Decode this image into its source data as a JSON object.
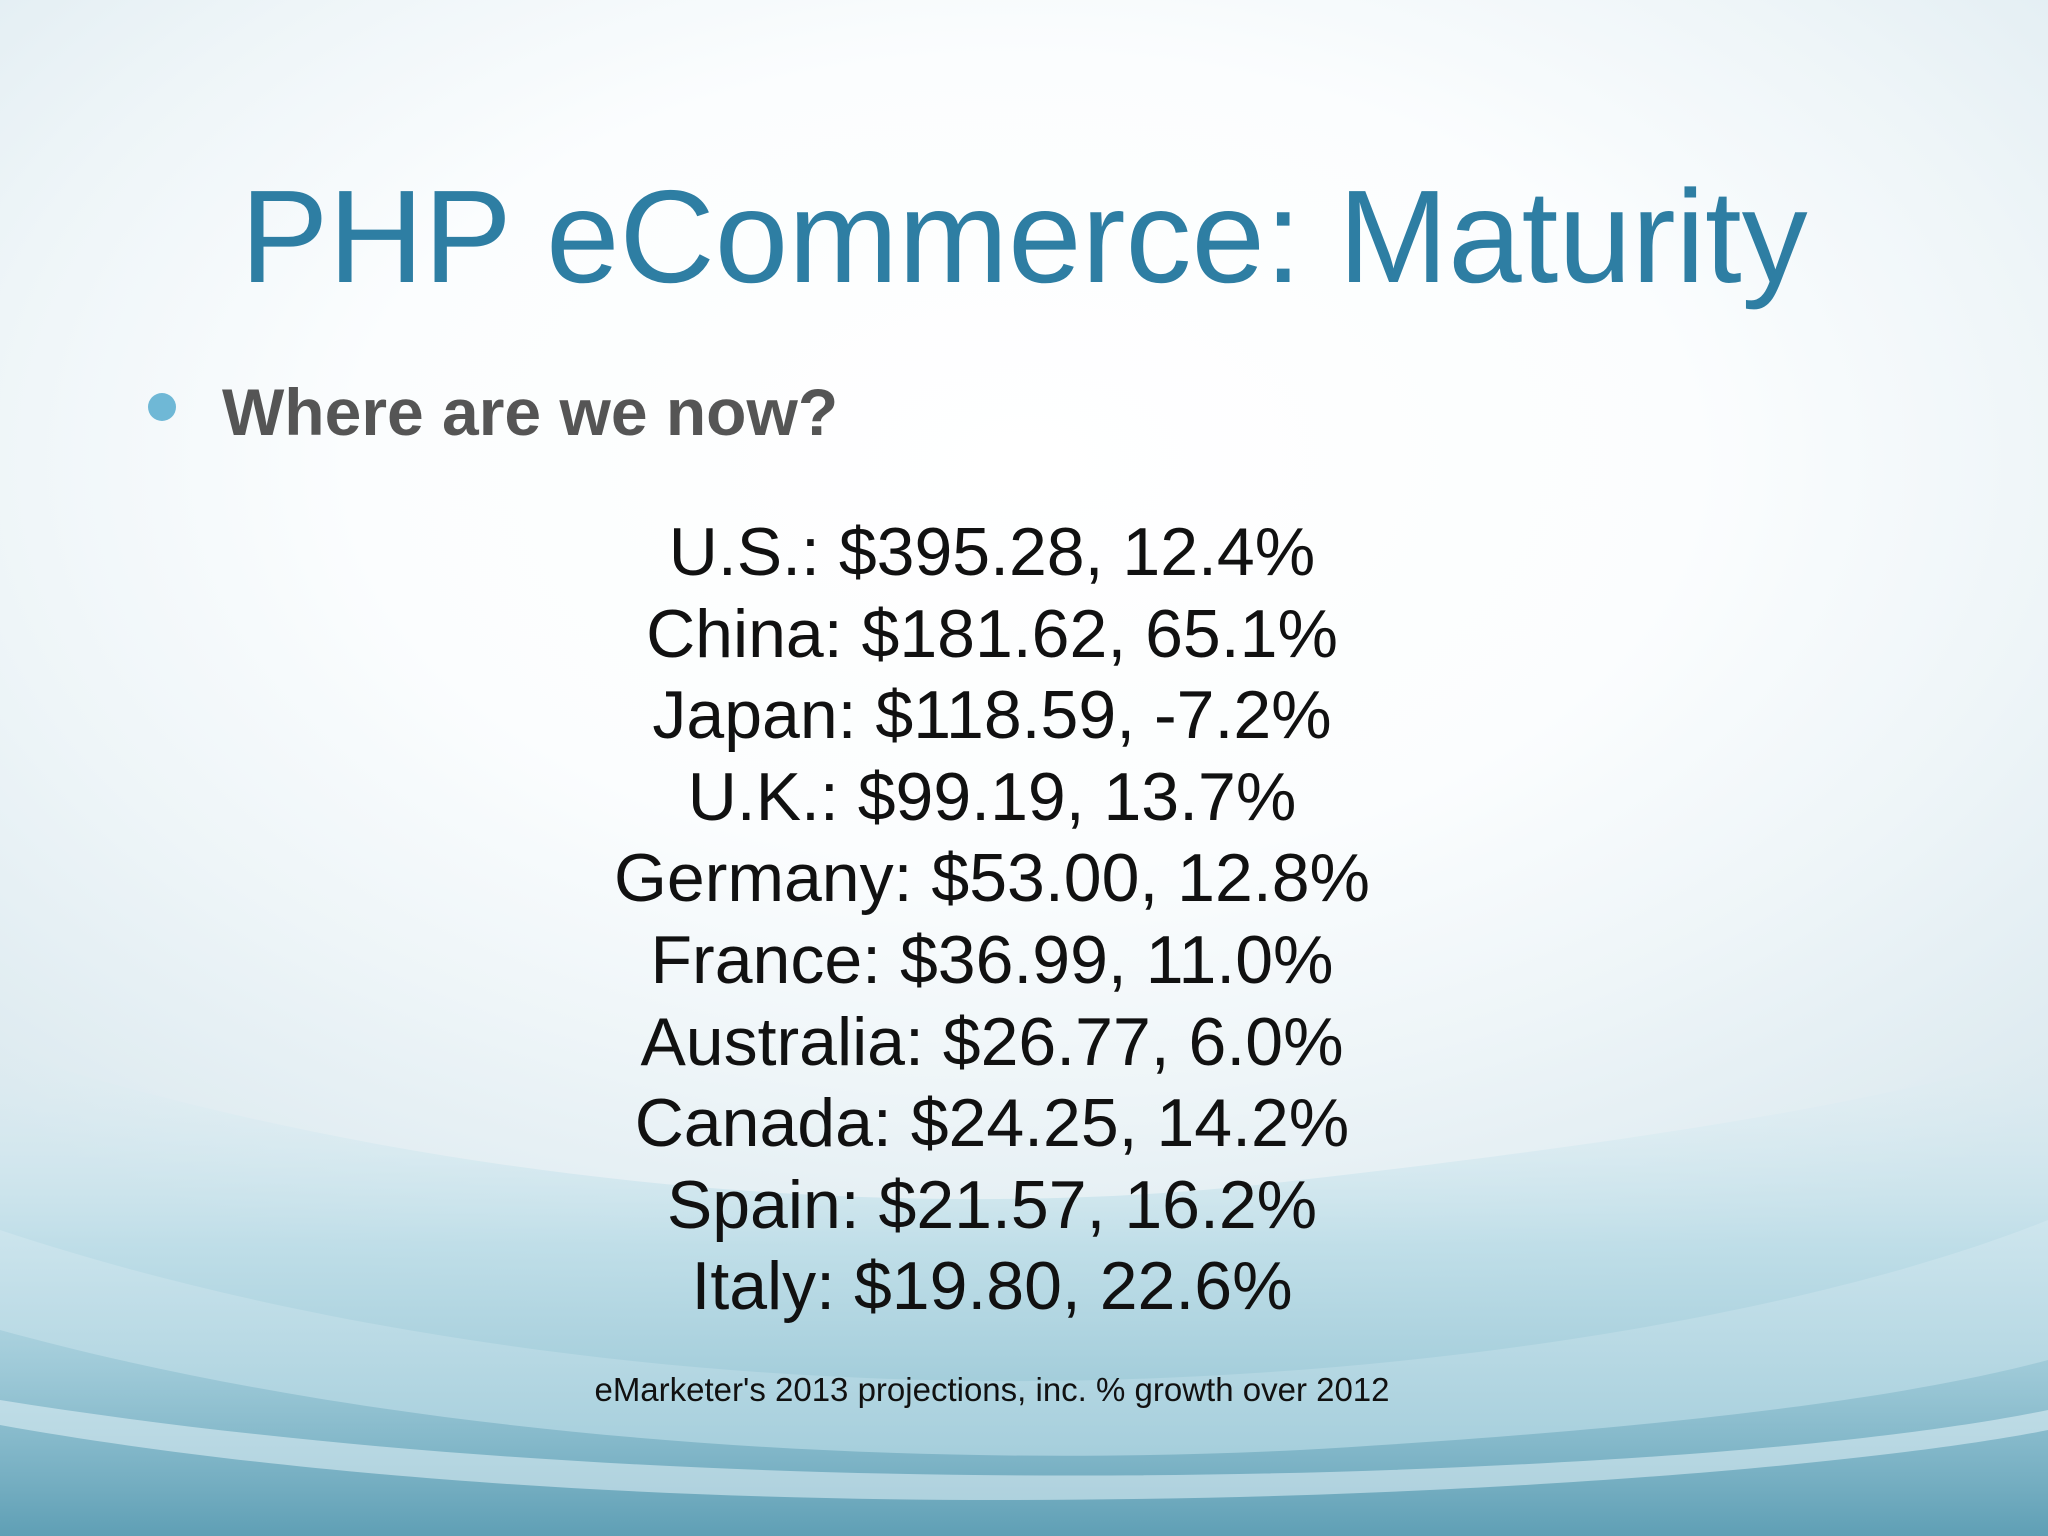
{
  "slide": {
    "title": "PHP eCommerce: Maturity",
    "bullet": "Where are we now?",
    "stats": [
      "U.S.:  $395.28, 12.4%",
      "China: $181.62, 65.1%",
      "Japan: $118.59, -7.2%",
      "U.K.: $99.19, 13.7%",
      "Germany: $53.00, 12.8%",
      "France: $36.99, 11.0%",
      "Australia: $26.77, 6.0%",
      "Canada: $24.25, 14.2%",
      "Spain: $21.57, 16.2%",
      "Italy: $19.80, 22.6%"
    ],
    "source": "eMarketer's 2013 projections, inc. % growth over 2012"
  },
  "colors": {
    "title": "#2e7ea3",
    "bullet_dot": "#6fb8d6",
    "bullet_text": "#555555",
    "body_text": "#111111",
    "wave_dark": "#5a9fb6",
    "wave_light": "#a9d1de"
  }
}
